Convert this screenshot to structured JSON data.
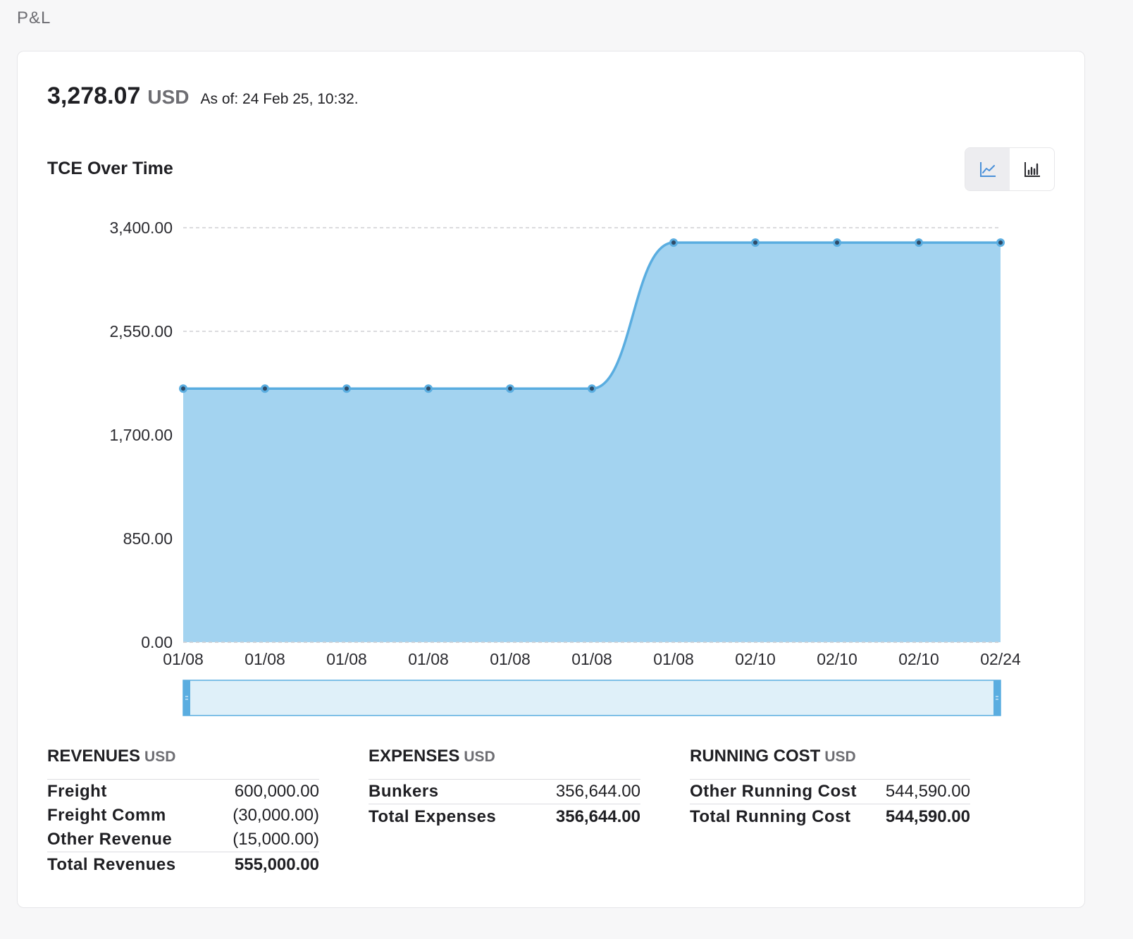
{
  "page": {
    "label": "P&L"
  },
  "summary": {
    "amount": "3,278.07",
    "currency": "USD",
    "as_of": "As of: 24 Feb 25, 10:32."
  },
  "chart_header": {
    "title": "TCE Over Time",
    "line_icon": "line-chart-icon",
    "bar_icon": "bar-chart-icon"
  },
  "colors": {
    "fill": "#a3d3f0",
    "line": "#5aade0",
    "point": "#2e4a66",
    "slider_fill": "#dff0f9",
    "slider_border": "#5aade0"
  },
  "chart_data": {
    "type": "area",
    "title": "TCE Over Time",
    "categories": [
      "01/08",
      "01/08",
      "01/08",
      "01/08",
      "01/08",
      "01/08",
      "01/08",
      "02/10",
      "02/10",
      "02/10",
      "02/24"
    ],
    "series": [
      {
        "values": [
          2080,
          2080,
          2080,
          2080,
          2080,
          2080,
          3278.07,
          3278.07,
          3278.07,
          3278.07,
          3278.07
        ]
      }
    ],
    "y_ticks": [
      "0.00",
      "850.00",
      "1,700.00",
      "2,550.00",
      "3,400.00"
    ],
    "ylim": [
      0,
      3400
    ],
    "grid": true,
    "smooth": true
  },
  "tables": {
    "revenues": {
      "title": "REVENUES",
      "unit": "USD",
      "rows": [
        {
          "label": "Freight",
          "value": "600,000.00"
        },
        {
          "label": "Freight Comm",
          "value": "(30,000.00)"
        },
        {
          "label": "Other Revenue",
          "value": "(15,000.00)"
        }
      ],
      "total": {
        "label": "Total Revenues",
        "value": "555,000.00"
      }
    },
    "expenses": {
      "title": "EXPENSES",
      "unit": "USD",
      "rows": [
        {
          "label": "Bunkers",
          "value": "356,644.00"
        }
      ],
      "total": {
        "label": "Total Expenses",
        "value": "356,644.00"
      }
    },
    "running_cost": {
      "title": "RUNNING COST",
      "unit": "USD",
      "rows": [
        {
          "label": "Other Running Cost",
          "value": "544,590.00"
        }
      ],
      "total": {
        "label": "Total Running Cost",
        "value": "544,590.00"
      }
    }
  }
}
